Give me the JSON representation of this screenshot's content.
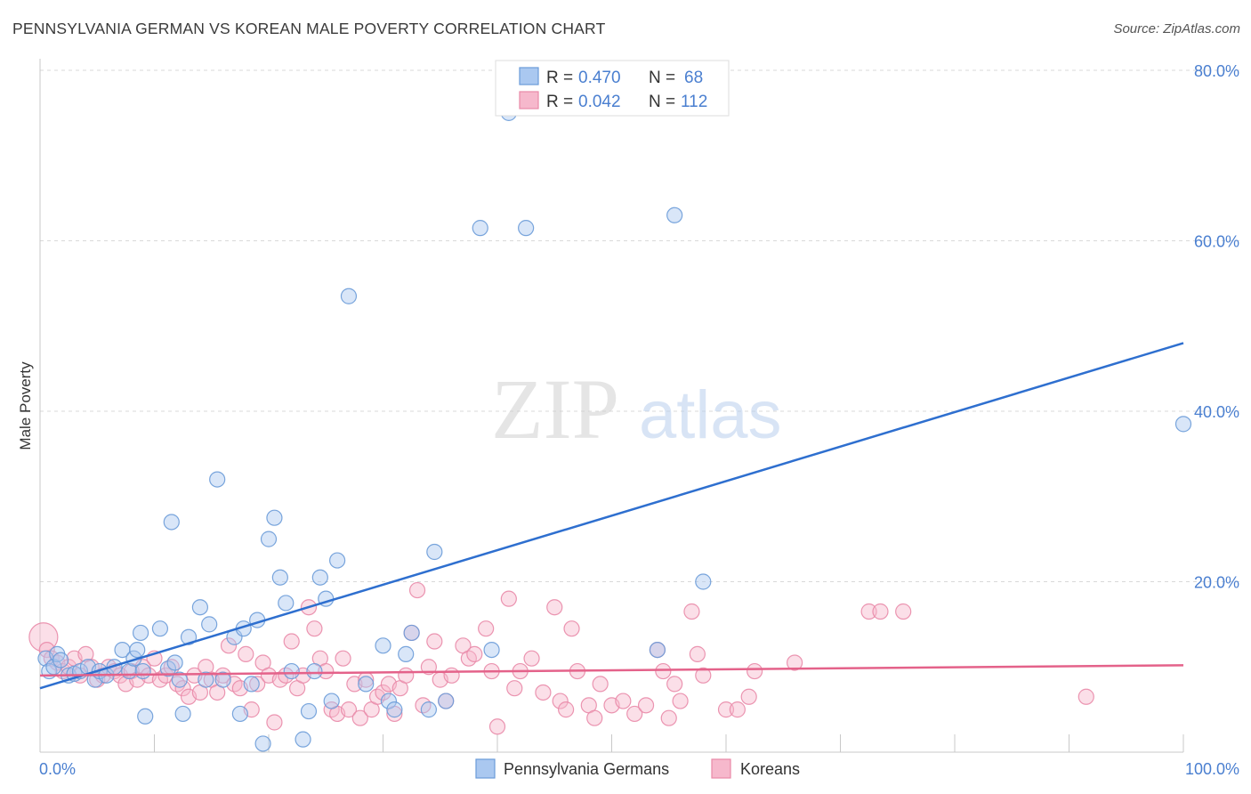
{
  "header": {
    "title": "PENNSYLVANIA GERMAN VS KOREAN MALE POVERTY CORRELATION CHART",
    "source": "Source: ZipAtlas.com"
  },
  "watermark": {
    "zip": "ZIP",
    "atlas": "atlas"
  },
  "legend_stats": [
    {
      "r_label": "R = ",
      "r_value": "0.470",
      "n_label": "N = ",
      "n_value": "68"
    },
    {
      "r_label": "R = ",
      "r_value": "0.042",
      "n_label": "N = ",
      "n_value": "112"
    }
  ],
  "colors": {
    "blue_fill": "#aac8f0",
    "blue_stroke": "#6a9bd8",
    "blue_line": "#2e6fcf",
    "pink_fill": "#f6b8cc",
    "pink_stroke": "#e98aa8",
    "pink_line": "#e4628a",
    "grid": "#d9d9d9",
    "tick_label": "#4a7fd0"
  },
  "chart_data": {
    "type": "scatter",
    "title": "PENNSYLVANIA GERMAN VS KOREAN MALE POVERTY CORRELATION CHART",
    "xlabel": "",
    "ylabel": "Male Poverty",
    "xlim": [
      0,
      100
    ],
    "ylim": [
      0,
      80
    ],
    "x_tick_labels": [
      "0.0%",
      "100.0%"
    ],
    "y_ticks": [
      20,
      40,
      60,
      80
    ],
    "y_tick_labels": [
      "20.0%",
      "40.0%",
      "60.0%",
      "80.0%"
    ],
    "grid": true,
    "legend_position": "bottom",
    "series": [
      {
        "name": "Pennsylvania Germans",
        "r": 0.47,
        "n": 68,
        "trend": {
          "x": [
            0,
            100
          ],
          "y": [
            7.5,
            48.0
          ]
        },
        "points": [
          [
            0.5,
            11
          ],
          [
            0.8,
            9.5
          ],
          [
            1.2,
            10
          ],
          [
            1.5,
            11.5
          ],
          [
            1.8,
            10.8
          ],
          [
            2.5,
            9
          ],
          [
            3.0,
            9.2
          ],
          [
            3.5,
            9.5
          ],
          [
            4.2,
            10
          ],
          [
            4.8,
            8.5
          ],
          [
            5.2,
            9.5
          ],
          [
            5.8,
            9
          ],
          [
            6.5,
            10
          ],
          [
            7.2,
            12
          ],
          [
            7.8,
            9.5
          ],
          [
            8.2,
            11
          ],
          [
            8.5,
            12
          ],
          [
            9.0,
            9.5
          ],
          [
            8.8,
            14
          ],
          [
            9.2,
            4.2
          ],
          [
            10.5,
            14.5
          ],
          [
            11.2,
            9.8
          ],
          [
            11.5,
            27
          ],
          [
            11.8,
            10.5
          ],
          [
            12.2,
            8.5
          ],
          [
            12.5,
            4.5
          ],
          [
            13.0,
            13.5
          ],
          [
            14.0,
            17
          ],
          [
            14.5,
            8.5
          ],
          [
            14.8,
            15
          ],
          [
            15.5,
            32
          ],
          [
            16.0,
            8.5
          ],
          [
            17.0,
            13.5
          ],
          [
            17.5,
            4.5
          ],
          [
            17.8,
            14.5
          ],
          [
            18.5,
            8
          ],
          [
            19.0,
            15.5
          ],
          [
            19.5,
            1
          ],
          [
            20.0,
            25
          ],
          [
            20.5,
            27.5
          ],
          [
            21.0,
            20.5
          ],
          [
            21.5,
            17.5
          ],
          [
            22.0,
            9.5
          ],
          [
            23.0,
            1.5
          ],
          [
            23.5,
            4.8
          ],
          [
            24.0,
            9.5
          ],
          [
            24.5,
            20.5
          ],
          [
            25.0,
            18
          ],
          [
            25.5,
            6
          ],
          [
            26.0,
            22.5
          ],
          [
            27.0,
            53.5
          ],
          [
            28.5,
            8
          ],
          [
            30.0,
            12.5
          ],
          [
            30.5,
            6
          ],
          [
            31.0,
            5
          ],
          [
            32.0,
            11.5
          ],
          [
            32.5,
            14
          ],
          [
            34.0,
            5
          ],
          [
            34.5,
            23.5
          ],
          [
            35.5,
            6
          ],
          [
            38.5,
            61.5
          ],
          [
            39.5,
            12
          ],
          [
            41.0,
            75
          ],
          [
            42.5,
            61.5
          ],
          [
            54.0,
            12
          ],
          [
            55.5,
            63
          ],
          [
            58.0,
            20
          ],
          [
            100.0,
            38.5
          ]
        ]
      },
      {
        "name": "Koreans",
        "r": 0.042,
        "n": 112,
        "trend": {
          "x": [
            0,
            100
          ],
          "y": [
            9.0,
            10.2
          ]
        },
        "points": [
          [
            0.3,
            13.5
          ],
          [
            0.6,
            12
          ],
          [
            1.0,
            11
          ],
          [
            1.5,
            10.5
          ],
          [
            2.0,
            9.5
          ],
          [
            2.5,
            10
          ],
          [
            3.0,
            11
          ],
          [
            3.5,
            9
          ],
          [
            4.0,
            11.5
          ],
          [
            4.5,
            10
          ],
          [
            5.0,
            8.5
          ],
          [
            5.5,
            9
          ],
          [
            6.0,
            10
          ],
          [
            6.5,
            9.5
          ],
          [
            7.0,
            9
          ],
          [
            7.5,
            8
          ],
          [
            8.0,
            9.5
          ],
          [
            8.5,
            8.5
          ],
          [
            9.0,
            10
          ],
          [
            9.5,
            9
          ],
          [
            10.0,
            11
          ],
          [
            10.5,
            8.5
          ],
          [
            11.0,
            9
          ],
          [
            11.5,
            10
          ],
          [
            12.0,
            8
          ],
          [
            12.5,
            7.5
          ],
          [
            13.0,
            6.5
          ],
          [
            13.5,
            9
          ],
          [
            14.0,
            7
          ],
          [
            14.5,
            10
          ],
          [
            15.0,
            8.5
          ],
          [
            15.5,
            7
          ],
          [
            16.0,
            9
          ],
          [
            16.5,
            12.5
          ],
          [
            17.0,
            8
          ],
          [
            17.5,
            7.5
          ],
          [
            18.0,
            11.5
          ],
          [
            18.5,
            5
          ],
          [
            19.0,
            8
          ],
          [
            19.5,
            10.5
          ],
          [
            20.0,
            9
          ],
          [
            20.5,
            3.5
          ],
          [
            21.0,
            8.5
          ],
          [
            21.5,
            9
          ],
          [
            22.0,
            13
          ],
          [
            22.5,
            7.5
          ],
          [
            23.0,
            9
          ],
          [
            23.5,
            17
          ],
          [
            24.0,
            14.5
          ],
          [
            24.5,
            11
          ],
          [
            25.0,
            9.5
          ],
          [
            25.5,
            5
          ],
          [
            26.0,
            4.5
          ],
          [
            26.5,
            11
          ],
          [
            27.0,
            5
          ],
          [
            27.5,
            8
          ],
          [
            28.0,
            4
          ],
          [
            28.5,
            8.5
          ],
          [
            29.0,
            5
          ],
          [
            29.5,
            6.5
          ],
          [
            30.0,
            7
          ],
          [
            30.5,
            8
          ],
          [
            31.0,
            4.5
          ],
          [
            31.5,
            7.5
          ],
          [
            32.0,
            9
          ],
          [
            32.5,
            14
          ],
          [
            33.0,
            19
          ],
          [
            33.5,
            5.5
          ],
          [
            34.0,
            10
          ],
          [
            34.5,
            13
          ],
          [
            35.0,
            8.5
          ],
          [
            35.5,
            6
          ],
          [
            36.0,
            9
          ],
          [
            37.0,
            12.5
          ],
          [
            37.5,
            11
          ],
          [
            38.0,
            11.5
          ],
          [
            39.0,
            14.5
          ],
          [
            39.5,
            9.5
          ],
          [
            40.0,
            3
          ],
          [
            41.0,
            18
          ],
          [
            41.5,
            7.5
          ],
          [
            42.0,
            9.5
          ],
          [
            43.0,
            11
          ],
          [
            44.0,
            7
          ],
          [
            45.0,
            17
          ],
          [
            45.5,
            6
          ],
          [
            46.0,
            5
          ],
          [
            46.5,
            14.5
          ],
          [
            47.0,
            9.5
          ],
          [
            48.0,
            5.5
          ],
          [
            48.5,
            4
          ],
          [
            49.0,
            8
          ],
          [
            50.0,
            5.5
          ],
          [
            51.0,
            6
          ],
          [
            52.0,
            4.5
          ],
          [
            53.0,
            5.5
          ],
          [
            54.0,
            12
          ],
          [
            54.5,
            9.5
          ],
          [
            55.0,
            4
          ],
          [
            55.5,
            8
          ],
          [
            56.0,
            6
          ],
          [
            57.0,
            16.5
          ],
          [
            57.5,
            11.5
          ],
          [
            58.0,
            9
          ],
          [
            60.0,
            5
          ],
          [
            61.0,
            5
          ],
          [
            62.0,
            6.5
          ],
          [
            62.5,
            9.5
          ],
          [
            66.0,
            10.5
          ],
          [
            72.5,
            16.5
          ],
          [
            73.5,
            16.5
          ],
          [
            75.5,
            16.5
          ],
          [
            91.5,
            6.5
          ]
        ]
      }
    ]
  }
}
